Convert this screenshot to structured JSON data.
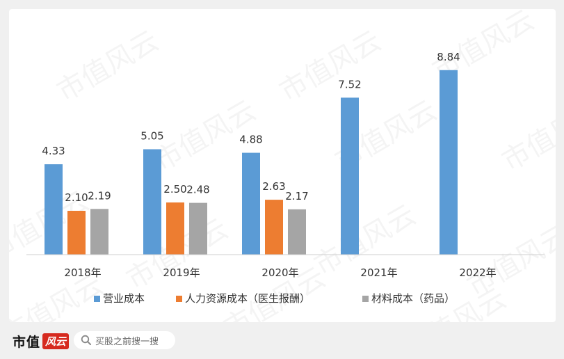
{
  "chart_data": {
    "type": "bar",
    "categories": [
      "2018年",
      "2019年",
      "2020年",
      "2021年",
      "2022年"
    ],
    "series": [
      {
        "name": "营业成本",
        "color": "#5b9bd5",
        "values": [
          4.33,
          5.05,
          4.88,
          7.52,
          8.84
        ]
      },
      {
        "name": "人力资源成本（医生报酬）",
        "color": "#ed7d31",
        "values": [
          2.1,
          2.5,
          2.63,
          null,
          null
        ]
      },
      {
        "name": "材料成本（药品）",
        "color": "#a5a5a5",
        "values": [
          2.19,
          2.48,
          2.17,
          null,
          null
        ]
      }
    ],
    "ylim": [
      0,
      10
    ],
    "legend_position": "bottom",
    "grid": false,
    "value_labels": true,
    "watermark_text": "市值风云"
  },
  "footer": {
    "brand_text": "市值",
    "brand_mark": "风云",
    "search_placeholder": "买股之前搜一搜",
    "search_icon": "search-icon"
  }
}
